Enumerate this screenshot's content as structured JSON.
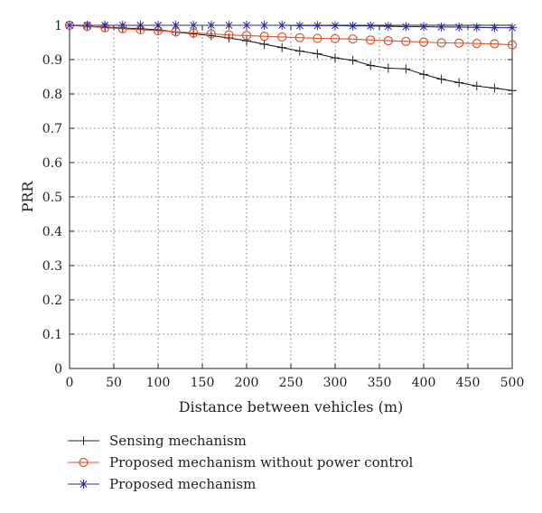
{
  "chart_data": {
    "type": "line",
    "title": "",
    "xlabel": "Distance between vehicles (m)",
    "ylabel": "PRR",
    "xlim": [
      0,
      500
    ],
    "ylim": [
      0,
      1
    ],
    "xticks": [
      0,
      50,
      100,
      150,
      200,
      250,
      300,
      350,
      400,
      450,
      500
    ],
    "yticks": [
      0,
      0.1,
      0.2,
      0.3,
      0.4,
      0.5,
      0.6,
      0.7,
      0.8,
      0.9,
      1
    ],
    "xtick_labels": [
      "0",
      "50",
      "100",
      "150",
      "200",
      "250",
      "300",
      "350",
      "400",
      "450",
      "500"
    ],
    "ytick_labels": [
      "0",
      "0.1",
      "0.2",
      "0.3",
      "0.4",
      "0.5",
      "0.6",
      "0.7",
      "0.8",
      "0.9",
      "1"
    ],
    "grid": true,
    "legend_position": "bottom",
    "x": [
      0,
      20,
      40,
      60,
      80,
      100,
      120,
      140,
      160,
      180,
      200,
      220,
      240,
      260,
      280,
      300,
      320,
      340,
      360,
      380,
      400,
      420,
      440,
      460,
      480,
      500
    ],
    "series": [
      {
        "name": "Sensing mechanism",
        "marker": "plus",
        "color": "#222222",
        "values": [
          1.0,
          0.997,
          0.995,
          0.992,
          0.99,
          0.987,
          0.98,
          0.975,
          0.97,
          0.963,
          0.955,
          0.945,
          0.935,
          0.925,
          0.917,
          0.905,
          0.898,
          0.883,
          0.875,
          0.873,
          0.857,
          0.843,
          0.833,
          0.823,
          0.817,
          0.81
        ]
      },
      {
        "name": "Proposed mechanism without power control",
        "marker": "circle",
        "color": "#d9532b",
        "values": [
          1.0,
          0.997,
          0.993,
          0.99,
          0.987,
          0.984,
          0.981,
          0.978,
          0.975,
          0.972,
          0.97,
          0.968,
          0.966,
          0.964,
          0.962,
          0.961,
          0.96,
          0.957,
          0.955,
          0.953,
          0.951,
          0.949,
          0.948,
          0.947,
          0.946,
          0.943
        ]
      },
      {
        "name": "Proposed mechanism",
        "marker": "asterisk",
        "color": "#2b2b9a",
        "values": [
          1.0,
          1.0,
          1.0,
          1.0,
          1.0,
          1.0,
          1.0,
          1.0,
          1.0,
          1.0,
          1.0,
          1.0,
          1.0,
          0.999,
          0.999,
          0.999,
          0.998,
          0.998,
          0.997,
          0.996,
          0.996,
          0.995,
          0.995,
          0.994,
          0.993,
          0.993
        ]
      }
    ]
  }
}
